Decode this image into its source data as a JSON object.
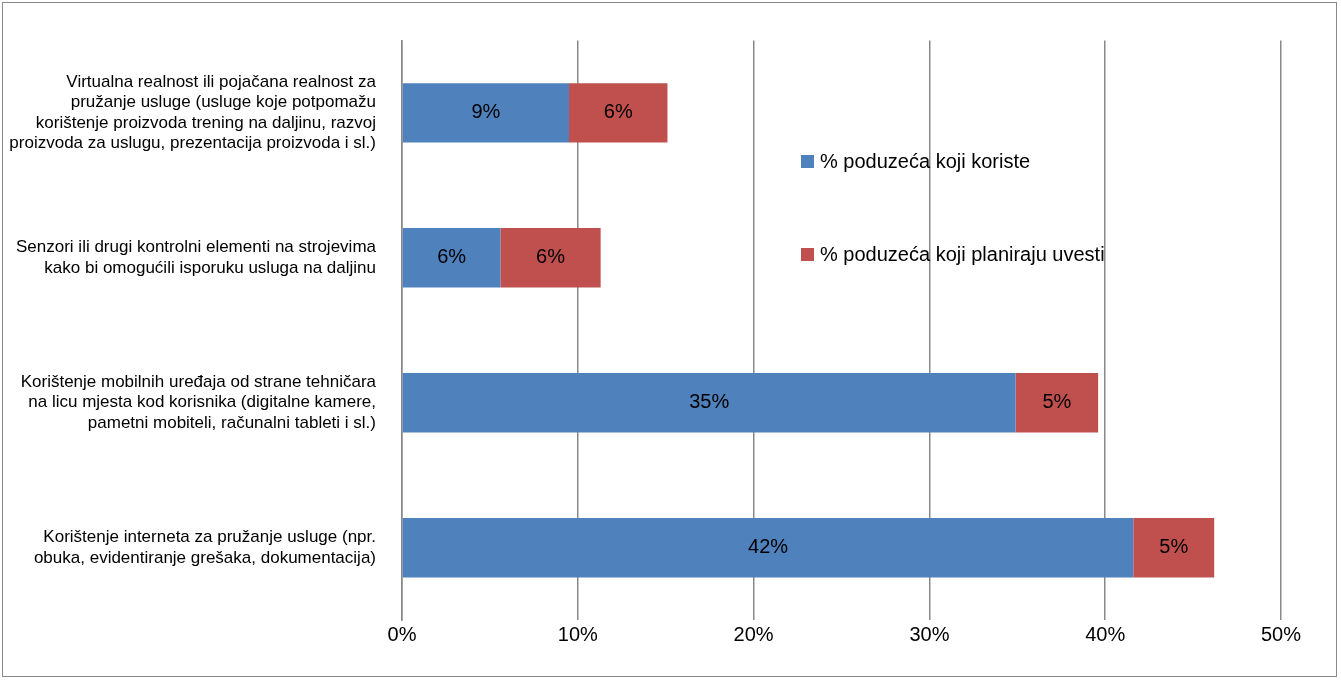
{
  "chart_data": {
    "type": "bar",
    "orientation": "horizontal",
    "stacked": true,
    "categories": [
      "Virtualna realnost ili pojačana realnost za pružanje usluge (usluge koje potpomažu korištenje proizvoda trening na daljinu, razvoj proizvoda za uslugu, prezentacija proizvoda i sl.)",
      "Senzori ili drugi kontrolni elementi na strojevima kako bi omogućili isporuku usluga na daljinu",
      "Korištenje mobilnih uređaja od strane tehničara na licu mjesta kod korisnika (digitalne kamere, pametni mobiteli, računalni tableti i sl.)",
      "Korištenje interneta za pružanje usluge (npr. obuka, evidentiranje grešaka, dokumentacija)"
    ],
    "series": [
      {
        "name": "% poduzeća koji koriste",
        "color": "#4f81bd",
        "values": [
          9.5,
          5.6,
          34.9,
          41.6
        ],
        "value_labels": [
          "9%",
          "6%",
          "35%",
          "42%"
        ]
      },
      {
        "name": "% poduzeća koji planiraju uvesti",
        "color": "#c0504d",
        "values": [
          5.6,
          5.7,
          4.7,
          4.6
        ],
        "value_labels": [
          "6%",
          "6%",
          "5%",
          "5%"
        ]
      }
    ],
    "xlim": [
      0,
      50
    ],
    "xticks": [
      {
        "value": 0,
        "label": "0%"
      },
      {
        "value": 10,
        "label": "10%"
      },
      {
        "value": 20,
        "label": "20%"
      },
      {
        "value": 30,
        "label": "30%"
      },
      {
        "value": 40,
        "label": "40%"
      },
      {
        "value": 50,
        "label": "50%"
      }
    ],
    "grid": "x",
    "legend": "right"
  }
}
